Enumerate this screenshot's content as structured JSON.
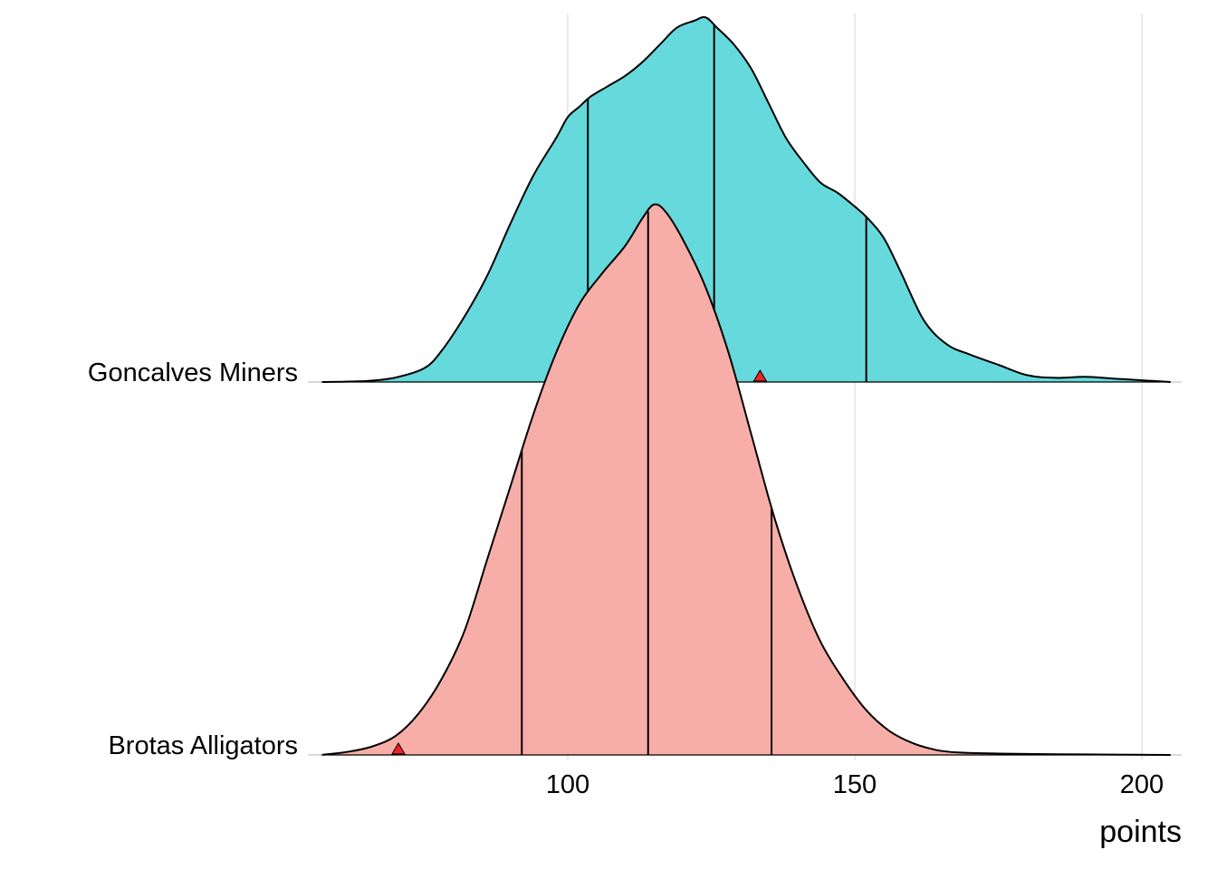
{
  "chart_data": {
    "type": "ridgeline-density",
    "xlabel": "points",
    "ylabel": "",
    "xlim": [
      52,
      207
    ],
    "xticks": [
      100,
      150,
      200
    ],
    "grid": "vertical-major",
    "legend": "none",
    "series": [
      {
        "name": "Goncalves Miners",
        "fill": "#66d9dc",
        "quantiles": {
          "q25": 103.5,
          "median": 125.5,
          "q75": 152
        },
        "marker_value": 133.5,
        "density_x": [
          57,
          65,
          70,
          75,
          78,
          82,
          86,
          90,
          94,
          98,
          100,
          102,
          104,
          107,
          110,
          113,
          116,
          119,
          122,
          124,
          126,
          129,
          132,
          135,
          138,
          141,
          144,
          147,
          150,
          152,
          155,
          158,
          162,
          166,
          170,
          175,
          180,
          185,
          190,
          195,
          200,
          205
        ],
        "density_y": [
          0.0,
          0.003,
          0.013,
          0.04,
          0.09,
          0.19,
          0.31,
          0.46,
          0.6,
          0.71,
          0.77,
          0.8,
          0.83,
          0.86,
          0.89,
          0.93,
          0.98,
          1.03,
          1.05,
          1.06,
          1.03,
          0.98,
          0.91,
          0.81,
          0.71,
          0.64,
          0.58,
          0.55,
          0.51,
          0.48,
          0.42,
          0.32,
          0.18,
          0.11,
          0.08,
          0.05,
          0.02,
          0.012,
          0.015,
          0.01,
          0.005,
          0.0
        ]
      },
      {
        "name": "Brotas Alligators",
        "fill": "#f8aea8",
        "quantiles": {
          "q25": 92,
          "median": 114,
          "q75": 135.5
        },
        "marker_value": 70.5,
        "density_x": [
          57,
          62,
          66,
          70,
          74,
          78,
          82,
          86,
          90,
          94,
          98,
          102,
          106,
          110,
          113,
          115,
          117,
          120,
          124,
          128,
          132,
          136,
          140,
          144,
          148,
          152,
          156,
          160,
          164,
          168,
          175,
          185,
          195,
          205
        ],
        "density_y": [
          0.0,
          0.01,
          0.025,
          0.055,
          0.12,
          0.22,
          0.36,
          0.57,
          0.78,
          0.99,
          1.17,
          1.31,
          1.4,
          1.48,
          1.56,
          1.6,
          1.58,
          1.5,
          1.36,
          1.17,
          0.93,
          0.69,
          0.49,
          0.33,
          0.22,
          0.13,
          0.07,
          0.035,
          0.015,
          0.007,
          0.004,
          0.002,
          0.001,
          0.0
        ]
      }
    ],
    "marker_color": "#ee2222"
  }
}
